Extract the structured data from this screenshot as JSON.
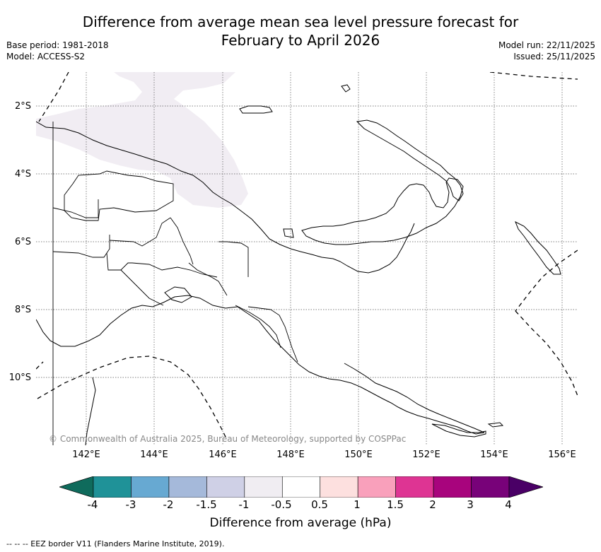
{
  "title_line1": "Difference from average mean sea level pressure forecast for",
  "title_line2": "February to April 2026",
  "meta_left": {
    "base_period": "Base period: 1981-2018",
    "model": "Model: ACCESS-S2"
  },
  "meta_right": {
    "model_run": "Model run: 22/11/2025",
    "issued": "Issued: 25/11/2025"
  },
  "lat_labels": [
    "2°S",
    "4°S",
    "6°S",
    "8°S",
    "10°S"
  ],
  "lon_labels": [
    "142°E",
    "144°E",
    "146°E",
    "148°E",
    "150°E",
    "152°E",
    "154°E",
    "156°E"
  ],
  "copyright": "© Commonwealth of Australia 2025, Bureau of Meteorology, supported by COSPPac",
  "colorbar": {
    "ticks": [
      "-4",
      "-3",
      "-2",
      "-1.5",
      "-1",
      "-0.5",
      "0.5",
      "1",
      "1.5",
      "2",
      "3",
      "4"
    ],
    "colors": [
      "#0f6b5c",
      "#1f9298",
      "#67a9d2",
      "#a5b9da",
      "#cfd0e6",
      "#f0edf2",
      "#ffffff",
      "#fde0df",
      "#f9a0bb",
      "#de3493",
      "#a8047d",
      "#780279",
      "#4a0066"
    ],
    "label": "Difference from average (hPa)"
  },
  "footnote": "--  --  -- EEZ border V11 (Flanders Marine Institute, 2019)."
}
